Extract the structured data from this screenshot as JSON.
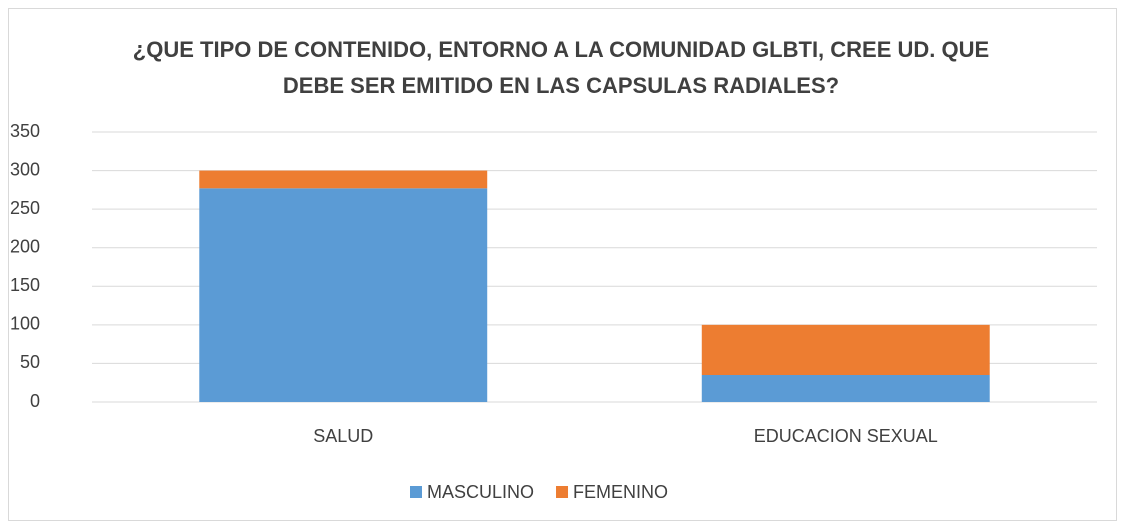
{
  "chart_data": {
    "type": "stacked_bar",
    "title": "¿QUE TIPO DE CONTENIDO, ENTORNO A LA COMUNIDAD GLBTI, CREE UD. QUE DEBE SER EMITIDO EN LAS CAPSULAS RADIALES?",
    "categories": [
      "SALUD",
      "EDUCACION SEXUAL"
    ],
    "series": [
      {
        "name": "MASCULINO",
        "color": "#5b9bd5",
        "values": [
          277,
          35
        ]
      },
      {
        "name": "FEMENINO",
        "color": "#ed7d31",
        "values": [
          23,
          65
        ]
      }
    ],
    "ylim": [
      0,
      350
    ],
    "yticks": [
      0,
      50,
      100,
      150,
      200,
      250,
      300,
      350
    ],
    "grid": true,
    "legend": "bottom"
  }
}
